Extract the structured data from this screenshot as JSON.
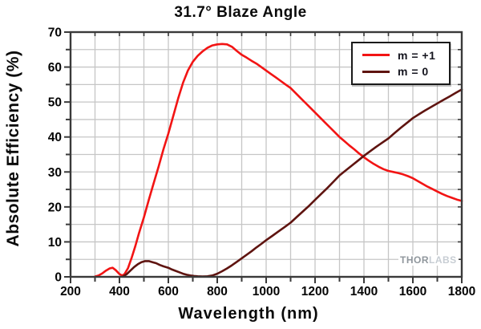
{
  "title": "31.7° Blaze Angle",
  "axes": {
    "x_label": "Wavelength (nm)",
    "y_label": "Absolute Efficiency (%)"
  },
  "legend": {
    "items": [
      {
        "label": "m = +1",
        "color": "#f21414"
      },
      {
        "label": "m = 0",
        "color": "#5f1410"
      }
    ]
  },
  "watermark": {
    "bold": "THOR",
    "light": "LABS"
  },
  "chart_data": {
    "type": "line",
    "title": "31.7° Blaze Angle",
    "xlabel": "Wavelength (nm)",
    "ylabel": "Absolute Efficiency (%)",
    "xlim": [
      200,
      1800
    ],
    "ylim": [
      0,
      70
    ],
    "x_major_ticks": [
      200,
      400,
      600,
      800,
      1000,
      1200,
      1400,
      1600,
      1800
    ],
    "x_minor_step": 100,
    "y_major_ticks": [
      0,
      10,
      20,
      30,
      40,
      50,
      60,
      70
    ],
    "y_minor_step": 5,
    "grid": {
      "show": true,
      "color": "#c6c6c6",
      "vertical_every_nm": 100,
      "horizontal_every_pct": 5
    },
    "frame_color": "#3a3a3a",
    "legend_position": "top-right-inside",
    "series": [
      {
        "name": "m = +1",
        "color": "#f21414",
        "points": [
          [
            300,
            0.1
          ],
          [
            315,
            0.4
          ],
          [
            330,
            1.0
          ],
          [
            345,
            1.8
          ],
          [
            360,
            2.4
          ],
          [
            372,
            2.6
          ],
          [
            385,
            1.9
          ],
          [
            400,
            0.8
          ],
          [
            410,
            0.4
          ],
          [
            420,
            0.7
          ],
          [
            435,
            2.5
          ],
          [
            450,
            5.5
          ],
          [
            465,
            8.8
          ],
          [
            480,
            12.5
          ],
          [
            500,
            17
          ],
          [
            520,
            22
          ],
          [
            540,
            26.8
          ],
          [
            560,
            31.5
          ],
          [
            580,
            36.5
          ],
          [
            600,
            41
          ],
          [
            620,
            46
          ],
          [
            640,
            51
          ],
          [
            660,
            55.5
          ],
          [
            680,
            59
          ],
          [
            700,
            61.5
          ],
          [
            720,
            63.2
          ],
          [
            740,
            64.5
          ],
          [
            760,
            65.5
          ],
          [
            780,
            66.2
          ],
          [
            800,
            66.5
          ],
          [
            820,
            66.6
          ],
          [
            840,
            66.5
          ],
          [
            860,
            65.8
          ],
          [
            880,
            64.6
          ],
          [
            900,
            63.5
          ],
          [
            920,
            62.7
          ],
          [
            940,
            61.8
          ],
          [
            960,
            61
          ],
          [
            980,
            60
          ],
          [
            1000,
            59
          ],
          [
            1020,
            58
          ],
          [
            1040,
            57
          ],
          [
            1060,
            56
          ],
          [
            1080,
            55
          ],
          [
            1100,
            54
          ],
          [
            1120,
            52.6
          ],
          [
            1140,
            51.2
          ],
          [
            1160,
            49.8
          ],
          [
            1180,
            48.4
          ],
          [
            1200,
            47
          ],
          [
            1220,
            45.6
          ],
          [
            1240,
            44.2
          ],
          [
            1260,
            42.8
          ],
          [
            1280,
            41.4
          ],
          [
            1300,
            40
          ],
          [
            1320,
            38.8
          ],
          [
            1340,
            37.6
          ],
          [
            1360,
            36.5
          ],
          [
            1380,
            35.3
          ],
          [
            1400,
            34.2
          ],
          [
            1420,
            33.2
          ],
          [
            1440,
            32.3
          ],
          [
            1460,
            31.5
          ],
          [
            1480,
            30.8
          ],
          [
            1500,
            30.3
          ],
          [
            1520,
            30
          ],
          [
            1540,
            29.7
          ],
          [
            1560,
            29.3
          ],
          [
            1580,
            28.8
          ],
          [
            1600,
            28.2
          ],
          [
            1620,
            27.4
          ],
          [
            1640,
            26.6
          ],
          [
            1660,
            25.8
          ],
          [
            1680,
            25.1
          ],
          [
            1700,
            24.4
          ],
          [
            1720,
            23.7
          ],
          [
            1740,
            23.1
          ],
          [
            1760,
            22.6
          ],
          [
            1780,
            22.1
          ],
          [
            1800,
            21.7
          ]
        ]
      },
      {
        "name": "m = 0",
        "color": "#5f1410",
        "points": [
          [
            415,
            0.1
          ],
          [
            430,
            0.8
          ],
          [
            445,
            1.8
          ],
          [
            460,
            2.8
          ],
          [
            475,
            3.6
          ],
          [
            490,
            4.2
          ],
          [
            505,
            4.5
          ],
          [
            520,
            4.5
          ],
          [
            535,
            4.2
          ],
          [
            550,
            3.9
          ],
          [
            565,
            3.4
          ],
          [
            580,
            3.0
          ],
          [
            600,
            2.6
          ],
          [
            615,
            2.1
          ],
          [
            630,
            1.7
          ],
          [
            645,
            1.3
          ],
          [
            660,
            0.9
          ],
          [
            675,
            0.6
          ],
          [
            690,
            0.4
          ],
          [
            705,
            0.25
          ],
          [
            720,
            0.15
          ],
          [
            740,
            0.1
          ],
          [
            760,
            0.15
          ],
          [
            780,
            0.4
          ],
          [
            800,
            0.9
          ],
          [
            820,
            1.6
          ],
          [
            840,
            2.4
          ],
          [
            860,
            3.3
          ],
          [
            880,
            4.3
          ],
          [
            900,
            5.3
          ],
          [
            920,
            6.3
          ],
          [
            940,
            7.3
          ],
          [
            960,
            8.4
          ],
          [
            980,
            9.4
          ],
          [
            1000,
            10.5
          ],
          [
            1025,
            11.7
          ],
          [
            1050,
            13
          ],
          [
            1075,
            14.2
          ],
          [
            1100,
            15.5
          ],
          [
            1125,
            17.1
          ],
          [
            1150,
            18.7
          ],
          [
            1175,
            20.3
          ],
          [
            1200,
            22
          ],
          [
            1225,
            23.7
          ],
          [
            1250,
            25.4
          ],
          [
            1275,
            27.2
          ],
          [
            1300,
            29
          ],
          [
            1325,
            30.4
          ],
          [
            1350,
            31.8
          ],
          [
            1375,
            33.2
          ],
          [
            1400,
            34.6
          ],
          [
            1425,
            35.9
          ],
          [
            1450,
            37.2
          ],
          [
            1475,
            38.4
          ],
          [
            1500,
            39.6
          ],
          [
            1525,
            41.1
          ],
          [
            1550,
            42.6
          ],
          [
            1575,
            44
          ],
          [
            1600,
            45.4
          ],
          [
            1625,
            46.5
          ],
          [
            1650,
            47.6
          ],
          [
            1675,
            48.6
          ],
          [
            1700,
            49.6
          ],
          [
            1725,
            50.6
          ],
          [
            1750,
            51.6
          ],
          [
            1775,
            52.6
          ],
          [
            1800,
            53.6
          ]
        ]
      }
    ]
  }
}
